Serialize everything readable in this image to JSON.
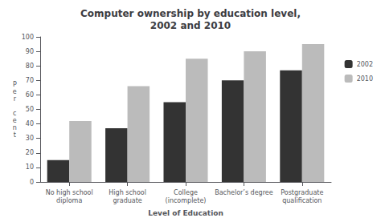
{
  "chart_data": {
    "type": "bar",
    "title": "Computer ownership by education level,\n2002 and 2010",
    "xlabel": "Level of Education",
    "ylabel": "P\ne\nr\n\nc\ne\nn\nt",
    "categories": [
      "No high school\ndiploma",
      "High school\ngraduate",
      "College\n(incomplete)",
      "Bachelor’s degree",
      "Postgraduate\nqualification"
    ],
    "series": [
      {
        "name": "2002",
        "color": "#333333",
        "values": [
          15,
          37,
          55,
          70,
          77
        ]
      },
      {
        "name": "2010",
        "color": "#bbbbbb",
        "values": [
          42,
          66,
          85,
          90,
          95
        ]
      }
    ],
    "ylim": [
      0,
      100
    ],
    "yticks": [
      0,
      10,
      20,
      30,
      40,
      50,
      60,
      70,
      80,
      90,
      100
    ],
    "grid": false,
    "legend": "right"
  }
}
